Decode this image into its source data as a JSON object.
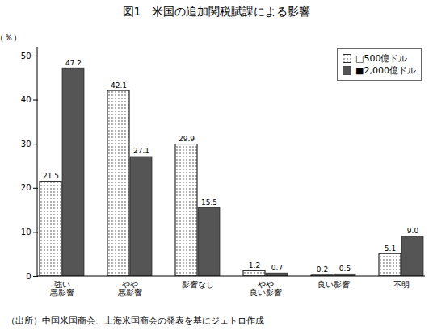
{
  "chart_data": {
    "type": "bar",
    "title": "図1　米国の追加関税賦課による影響",
    "categories": [
      "強い\n悪影響",
      "やや\n悪影響",
      "影響なし",
      "やや\n良い影響",
      "良い影響",
      "不明"
    ],
    "series": [
      {
        "name": "□500億ドル",
        "color": "#ffffff",
        "values": [
          21.5,
          42.1,
          29.9,
          1.2,
          0.2,
          5.1
        ]
      },
      {
        "name": "■2,000億ドル",
        "color": "#555555",
        "values": [
          47.2,
          27.1,
          15.5,
          0.7,
          0.5,
          9.0
        ],
        "value_labels": [
          "47.2",
          "27.1",
          "15.5",
          "0.7",
          "0.5",
          "9.0"
        ]
      }
    ],
    "ylabel": "（％）",
    "ylim": [
      0,
      52
    ],
    "yticks": [
      0,
      10,
      20,
      30,
      40,
      50
    ],
    "grid": false,
    "legend": "upper right",
    "data_labels": true,
    "footnote": "（出所）中国米国商会、上海米国商会の発表を基にジェトロ作成"
  }
}
